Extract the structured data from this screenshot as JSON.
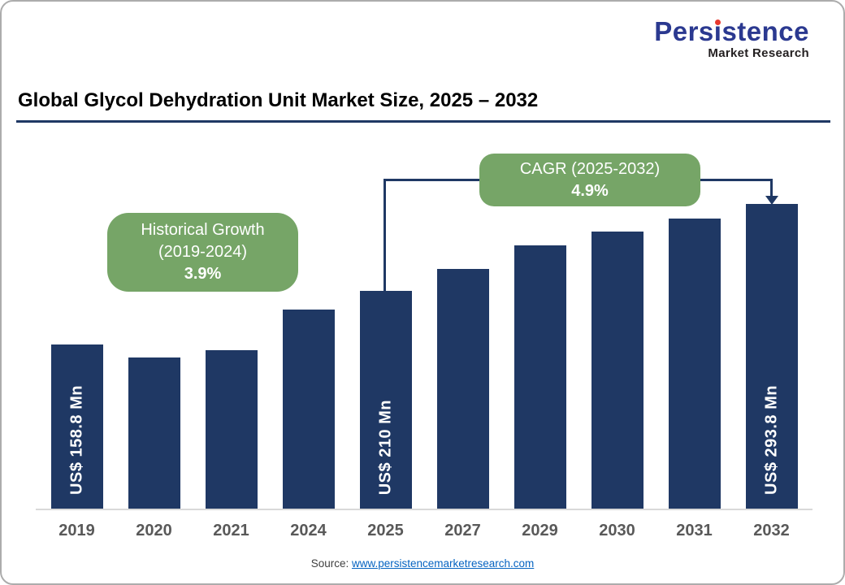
{
  "logo": {
    "name_pre": "Pers",
    "name_i": "ı",
    "name_post": "stence",
    "tagline": "Market Research",
    "brand_color": "#2B3990",
    "accent_color": "#E8392E"
  },
  "header": {
    "title": "Global Glycol Dehydration Unit Market Size, 2025 – 2032"
  },
  "callouts": {
    "historical": {
      "line1": "Historical Growth",
      "line2": "(2019-2024)",
      "line3": "3.9%"
    },
    "cagr": {
      "line1": "CAGR (2025-2032)",
      "line2": "4.9%"
    }
  },
  "source": {
    "prefix": "Source: ",
    "link": "www.persistencemarketresearch.com"
  },
  "chart_data": {
    "type": "bar",
    "title": "Global Glycol Dehydration Unit Market Size, 2025 – 2032",
    "categories": [
      "2019",
      "2020",
      "2021",
      "2024",
      "2025",
      "2027",
      "2029",
      "2030",
      "2031",
      "2032"
    ],
    "values": [
      158.8,
      146,
      153,
      192,
      210,
      231,
      254,
      267,
      280,
      293.8
    ],
    "unit": "US$ Mn",
    "bar_labels": [
      "US$ 158.8 Mn",
      "",
      "",
      "",
      "US$ 210 Mn",
      "",
      "",
      "",
      "",
      "US$ 293.8 Mn"
    ],
    "annotations": [
      {
        "label": "Historical Growth (2019-2024)",
        "value": "3.9%"
      },
      {
        "label": "CAGR (2025-2032)",
        "value": "4.9%"
      }
    ],
    "bar_color": "#1F3864",
    "xlabel": "",
    "ylabel": "",
    "ylim": [
      0,
      300
    ],
    "grid": false,
    "legend": false
  }
}
